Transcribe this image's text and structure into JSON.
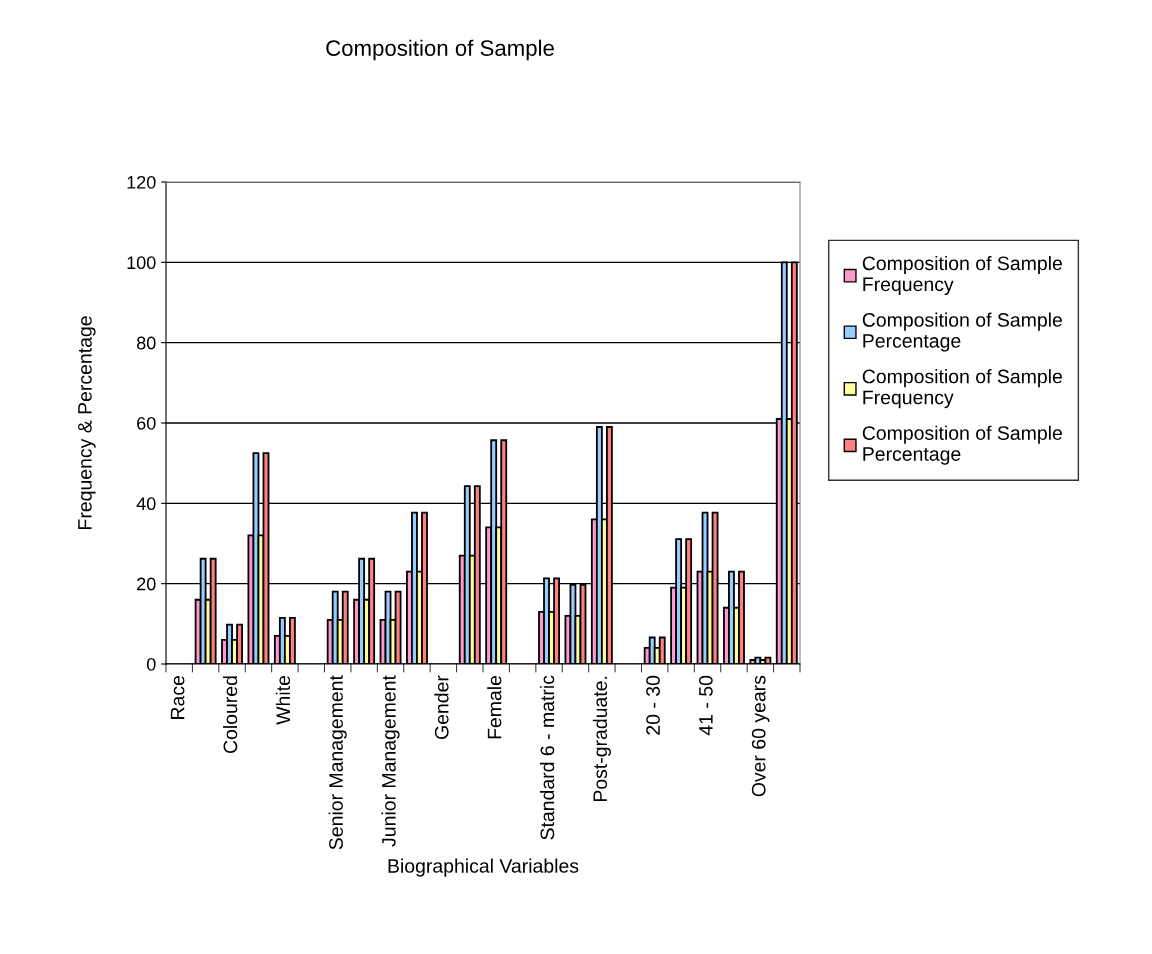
{
  "chart_data": {
    "type": "bar",
    "title": "Composition of Sample",
    "xlabel": "Biographical Variables",
    "ylabel": "Frequency & Percentage",
    "categories": [
      "Race",
      null,
      "Coloured",
      null,
      "White",
      null,
      "Senior Management",
      null,
      "Junior Management",
      null,
      "Gender",
      null,
      "Female",
      null,
      "Standard 6 - matric",
      null,
      "Post-graduate.",
      null,
      "20 - 30",
      null,
      "41 - 50",
      null,
      "Over 60 years",
      null
    ],
    "series": [
      {
        "name": "Composition of Sample Frequency",
        "color": "#ff99cc",
        "values": [
          null,
          16,
          6,
          32,
          7,
          null,
          11,
          16,
          11,
          23,
          null,
          27,
          34,
          null,
          13,
          12,
          36,
          null,
          4,
          19,
          23,
          14,
          1,
          61
        ]
      },
      {
        "name": "Composition of Sample Percentage",
        "color": "#99ccff",
        "values": [
          null,
          26.2,
          9.8,
          52.5,
          11.5,
          null,
          18,
          26.2,
          18,
          37.7,
          null,
          44.3,
          55.7,
          null,
          21.3,
          19.7,
          59,
          null,
          6.6,
          31.1,
          37.7,
          23,
          1.6,
          100
        ]
      },
      {
        "name": "Composition of Sample Frequency",
        "color": "#ffff99",
        "values": [
          null,
          16,
          6,
          32,
          7,
          null,
          11,
          16,
          11,
          23,
          null,
          27,
          34,
          null,
          13,
          12,
          36,
          null,
          4,
          19,
          23,
          14,
          1,
          61
        ]
      },
      {
        "name": "Composition of Sample Percentage",
        "color": "#ff8080",
        "values": [
          null,
          26.2,
          9.8,
          52.5,
          11.5,
          null,
          18,
          26.2,
          18,
          37.7,
          null,
          44.3,
          55.7,
          null,
          21.3,
          19.7,
          59,
          null,
          6.6,
          31.1,
          37.7,
          23,
          1.6,
          100
        ]
      }
    ],
    "ylim": [
      0,
      120
    ],
    "yticks": [
      0,
      20,
      40,
      60,
      80,
      100,
      120
    ],
    "grid": "y",
    "legend": "right"
  }
}
